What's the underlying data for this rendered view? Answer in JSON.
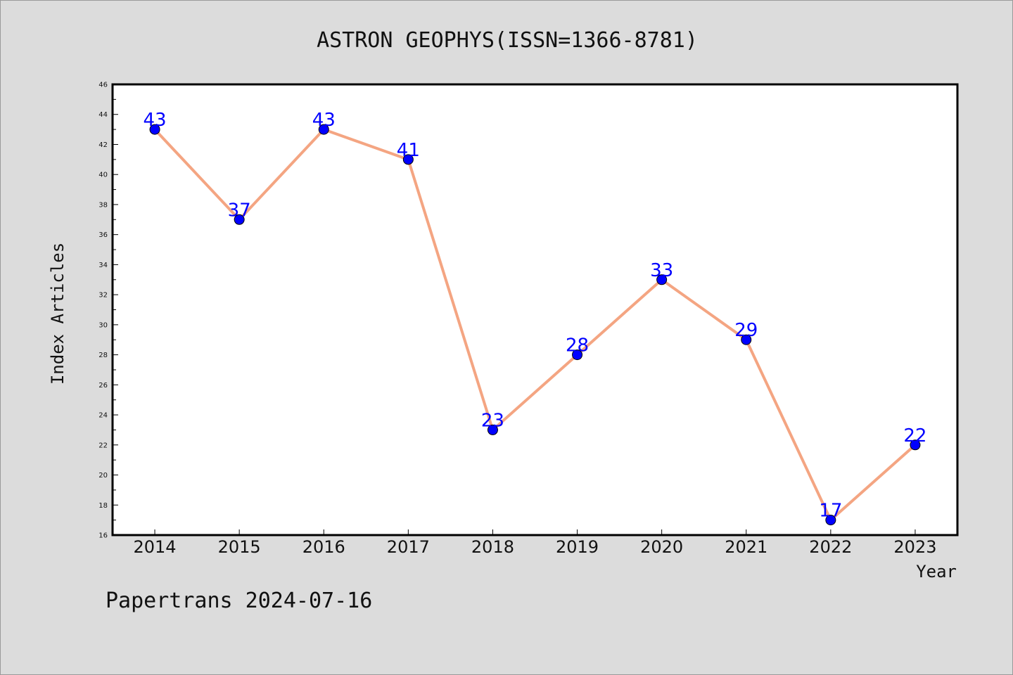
{
  "chart_data": {
    "type": "line",
    "title": "ASTRON GEOPHYS(ISSN=1366-8781)",
    "xlabel": "Year",
    "ylabel": "Index Articles",
    "categories": [
      "2014",
      "2015",
      "2016",
      "2017",
      "2018",
      "2019",
      "2020",
      "2021",
      "2022",
      "2023"
    ],
    "values": [
      43,
      37,
      43,
      41,
      23,
      28,
      33,
      29,
      17,
      22
    ],
    "ylim": [
      16,
      46
    ],
    "yticks": [
      16,
      18,
      20,
      22,
      24,
      26,
      28,
      30,
      32,
      34,
      36,
      38,
      40,
      42,
      44,
      46
    ],
    "grid": false,
    "data_labels": true,
    "colors": {
      "line": "#f4a582",
      "marker": "#0000ff",
      "label": "#0000ff",
      "background": "#dcdcdc",
      "plot_bg": "#ffffff"
    }
  },
  "footer": "Papertrans 2024-07-16"
}
